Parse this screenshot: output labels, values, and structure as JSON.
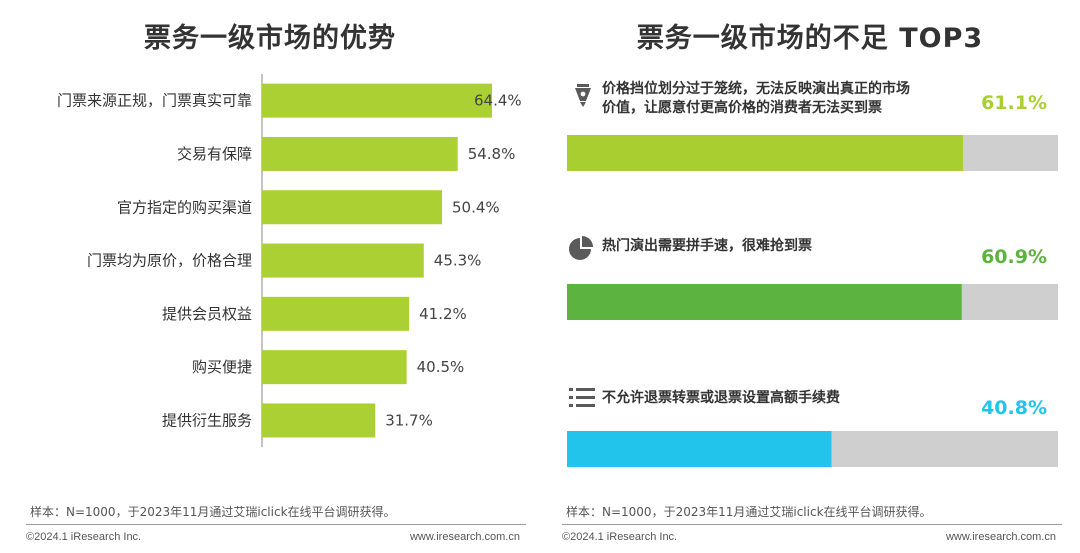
{
  "left": {
    "title": "票务一级市场的优势",
    "note": "样本：N=1000，于2023年11月通过艾瑞iclick在线平台调研获得。",
    "copyright": "©2024.1 iResearch Inc.",
    "website": "www.iresearch.com.cn"
  },
  "right": {
    "title": "票务一级市场的不足 TOP3",
    "note": "样本：N=1000，于2023年11月通过艾瑞iclick在线平台调研获得。",
    "copyright": "©2024.1 iResearch Inc.",
    "website": "www.iresearch.com.cn",
    "items": [
      {
        "line1": "价格挡位划分过于笼统，无法反映演出真正的市场",
        "line2": "价值，让愿意付更高价格的消费者无法买到票",
        "pct": "61.1%",
        "icon": "pen-nib-icon",
        "color": "#a8cf2f"
      },
      {
        "line1": "热门演出需要拼手速，很难抢到票",
        "line2": "",
        "pct": "60.9%",
        "icon": "pie-chart-icon",
        "color": "#5db33f"
      },
      {
        "line1": "不允许退票转票或退票设置高额手续费",
        "line2": "",
        "pct": "40.8%",
        "icon": "list-icon",
        "color": "#23c4ec"
      }
    ]
  },
  "chart_data": [
    {
      "type": "bar",
      "orientation": "horizontal",
      "title": "票务一级市场的优势",
      "categories": [
        "门票来源正规，门票真实可靠",
        "交易有保障",
        "官方指定的购买渠道",
        "门票均为原价，价格合理",
        "提供会员权益",
        "购买便捷",
        "提供衍生服务"
      ],
      "values": [
        64.4,
        54.8,
        50.4,
        45.3,
        41.2,
        40.5,
        31.7
      ],
      "labels": [
        "64.4%",
        "54.8%",
        "50.4%",
        "45.3%",
        "41.2%",
        "40.5%",
        "31.7%"
      ],
      "unit": "%",
      "xlim": [
        0,
        100
      ],
      "bar_color": "#aad033"
    },
    {
      "type": "bar",
      "orientation": "horizontal",
      "title": "票务一级市场的不足 TOP3",
      "categories": [
        "价格挡位划分过于笼统，无法反映演出真正的市场价值，让愿意付更高价格的消费者无法买到票",
        "热门演出需要拼手速，很难抢到票",
        "不允许退票转票或退票设置高额手续费"
      ],
      "values": [
        61.1,
        60.9,
        40.8
      ],
      "labels": [
        "61.1%",
        "60.9%",
        "40.8%"
      ],
      "unit": "%",
      "xlim": [
        0,
        100
      ],
      "colors": [
        "#a8cf2f",
        "#5db33f",
        "#23c4ec"
      ],
      "track_color": "#cfcfcf"
    }
  ]
}
